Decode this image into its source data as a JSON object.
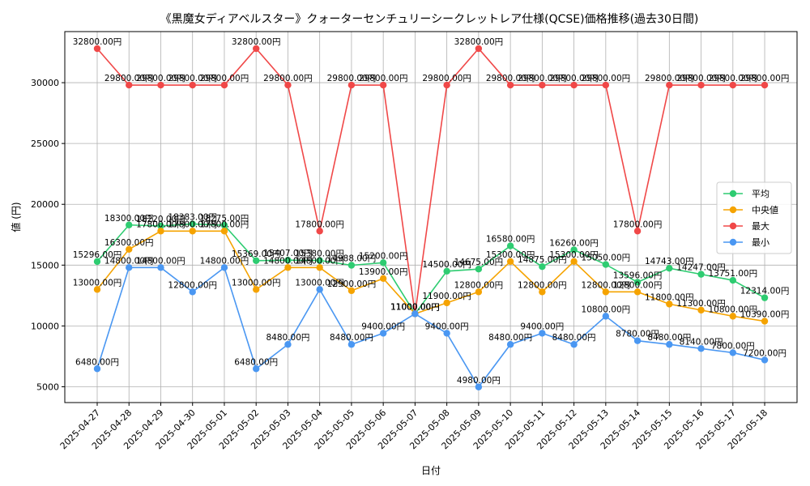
{
  "chart_data": {
    "type": "line",
    "title": "《黒魔女ディアベルスター》クォーターセンチュリーシークレットレア仕様(QCSE)価格推移(過去30日間)",
    "xlabel": "日付",
    "ylabel": "値 (円)",
    "ylim": [
      3700,
      34200
    ],
    "yticks": [
      5000,
      10000,
      15000,
      20000,
      25000,
      30000
    ],
    "grid": true,
    "legend_position": "right",
    "label_suffix": "円",
    "categories": [
      "2025-04-27",
      "2025-04-28",
      "2025-04-29",
      "2025-04-30",
      "2025-05-01",
      "2025-05-02",
      "2025-05-03",
      "2025-05-04",
      "2025-05-05",
      "2025-05-06",
      "2025-05-07",
      "2025-05-08",
      "2025-05-09",
      "2025-05-10",
      "2025-05-11",
      "2025-05-12",
      "2025-05-13",
      "2025-05-14",
      "2025-05-15",
      "2025-05-16",
      "2025-05-17",
      "2025-05-18"
    ],
    "series": [
      {
        "name": "平均",
        "color": "#2ecc71",
        "values": [
          15296,
          18300,
          18220,
          18383,
          18275,
          15369,
          15407,
          15380,
          14988,
          15200,
          11000,
          14500,
          14675,
          16580,
          14875,
          16260,
          15050,
          13596,
          14743,
          14247,
          13751,
          12314
        ]
      },
      {
        "name": "中央値",
        "color": "#f5a300",
        "values": [
          13000,
          16300,
          17800,
          17800,
          17800,
          13000,
          14800,
          14800,
          12900,
          13900,
          11000,
          11900,
          12800,
          15300,
          12800,
          15300,
          12800,
          12800,
          11800,
          11300,
          10800,
          10390
        ]
      },
      {
        "name": "最大",
        "color": "#f04848",
        "values": [
          32800,
          29800,
          29800,
          29800,
          29800,
          32800,
          29800,
          17800,
          29800,
          29800,
          11000,
          29800,
          32800,
          29800,
          29800,
          29800,
          29800,
          17800,
          29800,
          29800,
          29800,
          29800
        ]
      },
      {
        "name": "最小",
        "color": "#4a97f2",
        "values": [
          6480,
          14800,
          14800,
          12800,
          14800,
          6480,
          8480,
          13000,
          8480,
          9400,
          11000,
          9400,
          4980,
          8480,
          9400,
          8480,
          10800,
          8780,
          8480,
          8140,
          7800,
          7200
        ]
      }
    ]
  }
}
